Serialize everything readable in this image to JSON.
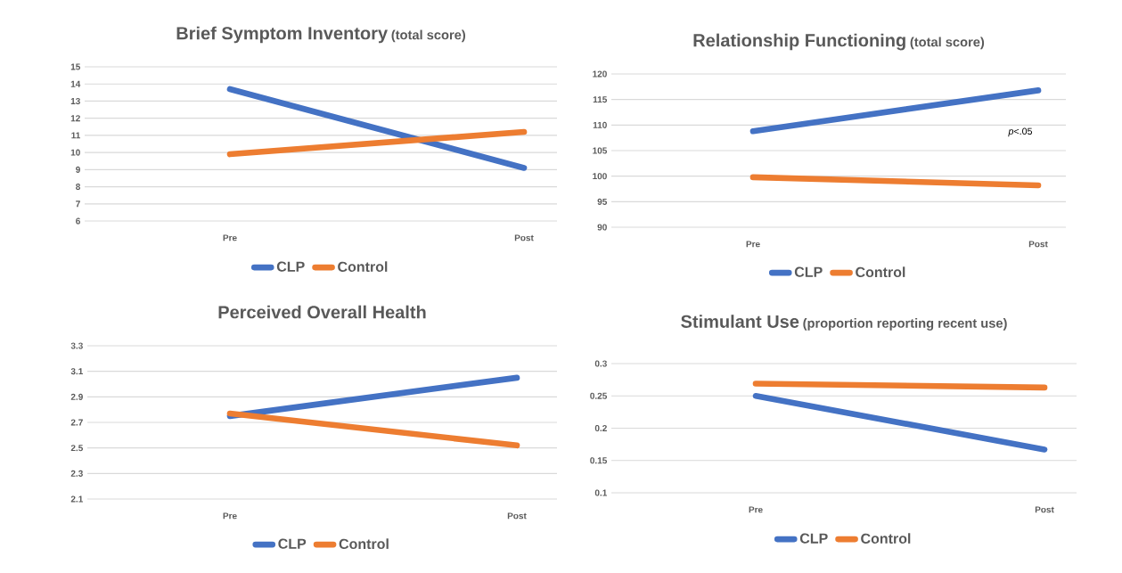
{
  "chart_data": [
    {
      "type": "line",
      "title": "Brief Symptom Inventory",
      "subtitle": "(total score)",
      "categories": [
        "Pre",
        "Post"
      ],
      "series": [
        {
          "name": "CLP",
          "color": "#4472c4",
          "values": [
            13.7,
            9.1
          ]
        },
        {
          "name": "Control",
          "color": "#ed7d31",
          "values": [
            9.9,
            11.2
          ]
        }
      ],
      "ylim": [
        6,
        15
      ],
      "yticks": [
        6,
        7,
        8,
        9,
        10,
        11,
        12,
        13,
        14,
        15
      ],
      "grid": "y",
      "legend": "bottom",
      "marker": "none"
    },
    {
      "type": "line",
      "title": "Relationship Functioning",
      "subtitle": "(total score)",
      "categories": [
        "Pre",
        "Post"
      ],
      "series": [
        {
          "name": "CLP",
          "color": "#4472c4",
          "values": [
            108.8,
            116.8
          ]
        },
        {
          "name": "Control",
          "color": "#ed7d31",
          "values": [
            99.8,
            98.2
          ]
        }
      ],
      "ylim": [
        90,
        120
      ],
      "yticks": [
        90,
        95,
        100,
        105,
        110,
        115,
        120
      ],
      "grid": "y",
      "legend": "bottom",
      "marker": "none",
      "annotations": [
        "*p*<.05"
      ]
    },
    {
      "type": "line",
      "title": "Perceived Overall Health",
      "categories": [
        "Pre",
        "Post"
      ],
      "series": [
        {
          "name": "CLP",
          "color": "#4472c4",
          "values": [
            2.75,
            3.05
          ]
        },
        {
          "name": "Control",
          "color": "#ed7d31",
          "values": [
            2.77,
            2.52
          ]
        }
      ],
      "ylim": [
        2.1,
        3.3
      ],
      "yticks": [
        2.1,
        2.3,
        2.5,
        2.7,
        2.9,
        3.1,
        3.3
      ],
      "grid": "y",
      "legend": "bottom",
      "marker": "none"
    },
    {
      "type": "line",
      "title": "Stimulant Use",
      "subtitle": "(proportion reporting recent use)",
      "categories": [
        "Pre",
        "Post"
      ],
      "series": [
        {
          "name": "CLP",
          "color": "#4472c4",
          "values": [
            0.25,
            0.167
          ]
        },
        {
          "name": "Control",
          "color": "#ed7d31",
          "values": [
            0.269,
            0.263
          ]
        }
      ],
      "ylim": [
        0.1,
        0.3
      ],
      "yticks": [
        0.1,
        0.15,
        0.2,
        0.25,
        0.3
      ],
      "grid": "y",
      "legend": "bottom",
      "marker": "none"
    }
  ]
}
